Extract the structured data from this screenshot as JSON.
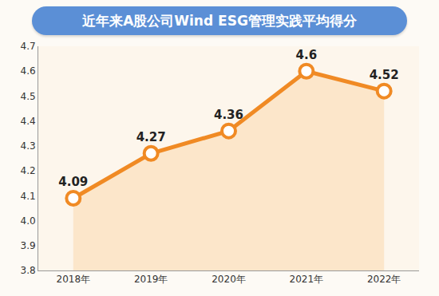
{
  "chart_data": {
    "type": "line",
    "title": "近年来A股公司Wind ESG管理实践平均得分",
    "categories": [
      "2018年",
      "2019年",
      "2020年",
      "2021年",
      "2022年"
    ],
    "values": [
      4.09,
      4.27,
      4.36,
      4.6,
      4.52
    ],
    "color": "#f08a24",
    "marker": "circle",
    "ylim": [
      3.8,
      4.7
    ],
    "yticks": [
      3.8,
      3.9,
      {
        "value": 4,
        "label": "4.0"
      },
      4.1,
      4.2,
      4.3,
      4.4,
      4.5,
      4.6,
      4.7
    ],
    "grid": false,
    "data_labels": true
  }
}
